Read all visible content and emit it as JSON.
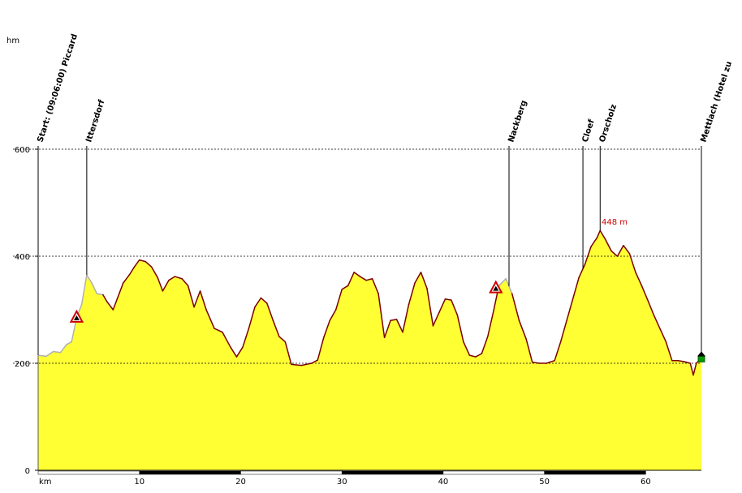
{
  "chart_data": {
    "type": "area",
    "y_unit": "hm",
    "x_unit": "km",
    "xlim": [
      0,
      65.5
    ],
    "ylim": [
      0,
      600
    ],
    "x_ticks": [
      10,
      20,
      30,
      40,
      50,
      60
    ],
    "y_ticks": [
      0,
      200,
      400,
      600
    ],
    "grid": "horizontal dotted at 200, 400, 600",
    "peak_label": "448 m",
    "peak": {
      "x": 55.5,
      "y": 448
    },
    "colors": {
      "fill": "#ffff33",
      "outline": "#7a0000",
      "outline_grey": "#b0b0b0",
      "grid": "#000000",
      "peak_text": "#cc0000",
      "bar_dark": "#000000"
    },
    "waypoints": [
      {
        "label": "Start: (09:06:00) Piccard",
        "x": 0
      },
      {
        "label": "Ittersdorf",
        "x": 4.8
      },
      {
        "label": "Nackberg",
        "x": 46.5
      },
      {
        "label": "Cloef",
        "x": 53.8
      },
      {
        "label": "Orscholz",
        "x": 55.5
      },
      {
        "label": "Mettlach (Hotel zu",
        "x": 65.5
      }
    ],
    "markers": [
      {
        "icon": "warning-triangle-icon",
        "x": 3.8,
        "y": 285
      },
      {
        "icon": "warning-triangle-icon",
        "x": 45.2,
        "y": 340
      },
      {
        "icon": "finish-flag-icon",
        "x": 65.5,
        "y": 210
      }
    ],
    "profile": [
      [
        0,
        215
      ],
      [
        0.8,
        213
      ],
      [
        1.5,
        222
      ],
      [
        2.2,
        220
      ],
      [
        2.8,
        235
      ],
      [
        3.3,
        240
      ],
      [
        3.8,
        285
      ],
      [
        4.3,
        310
      ],
      [
        4.8,
        365
      ],
      [
        5.3,
        350
      ],
      [
        5.8,
        330
      ],
      [
        6.4,
        328
      ],
      [
        6.8,
        315
      ],
      [
        7.4,
        300
      ],
      [
        7.8,
        320
      ],
      [
        8.4,
        350
      ],
      [
        9.0,
        365
      ],
      [
        9.5,
        380
      ],
      [
        10.0,
        393
      ],
      [
        10.6,
        390
      ],
      [
        11.2,
        380
      ],
      [
        11.8,
        360
      ],
      [
        12.3,
        335
      ],
      [
        12.9,
        355
      ],
      [
        13.5,
        362
      ],
      [
        14.2,
        358
      ],
      [
        14.8,
        345
      ],
      [
        15.4,
        305
      ],
      [
        16.0,
        335
      ],
      [
        16.6,
        300
      ],
      [
        17.4,
        265
      ],
      [
        18.2,
        258
      ],
      [
        19.0,
        230
      ],
      [
        19.6,
        212
      ],
      [
        20.2,
        230
      ],
      [
        20.8,
        265
      ],
      [
        21.4,
        305
      ],
      [
        22.0,
        322
      ],
      [
        22.6,
        312
      ],
      [
        23.2,
        280
      ],
      [
        23.8,
        250
      ],
      [
        24.4,
        240
      ],
      [
        25.0,
        198
      ],
      [
        26.0,
        196
      ],
      [
        27.0,
        200
      ],
      [
        27.6,
        206
      ],
      [
        28.2,
        248
      ],
      [
        28.8,
        280
      ],
      [
        29.4,
        300
      ],
      [
        30.0,
        338
      ],
      [
        30.6,
        345
      ],
      [
        31.2,
        370
      ],
      [
        31.8,
        362
      ],
      [
        32.4,
        355
      ],
      [
        33.0,
        358
      ],
      [
        33.6,
        330
      ],
      [
        34.2,
        248
      ],
      [
        34.8,
        280
      ],
      [
        35.4,
        282
      ],
      [
        36.0,
        258
      ],
      [
        36.6,
        310
      ],
      [
        37.2,
        350
      ],
      [
        37.8,
        370
      ],
      [
        38.4,
        340
      ],
      [
        39.0,
        270
      ],
      [
        39.6,
        295
      ],
      [
        40.2,
        320
      ],
      [
        40.8,
        318
      ],
      [
        41.4,
        290
      ],
      [
        42.0,
        240
      ],
      [
        42.6,
        215
      ],
      [
        43.2,
        212
      ],
      [
        43.8,
        218
      ],
      [
        44.4,
        250
      ],
      [
        45.0,
        300
      ],
      [
        45.5,
        345
      ],
      [
        46.2,
        358
      ],
      [
        46.8,
        330
      ],
      [
        47.5,
        280
      ],
      [
        48.2,
        245
      ],
      [
        48.8,
        202
      ],
      [
        49.5,
        200
      ],
      [
        50.2,
        200
      ],
      [
        51.0,
        205
      ],
      [
        51.6,
        240
      ],
      [
        52.2,
        280
      ],
      [
        52.8,
        320
      ],
      [
        53.4,
        360
      ],
      [
        54.0,
        385
      ],
      [
        54.6,
        418
      ],
      [
        55.2,
        435
      ],
      [
        55.5,
        448
      ],
      [
        56.0,
        432
      ],
      [
        56.6,
        410
      ],
      [
        57.2,
        400
      ],
      [
        57.8,
        420
      ],
      [
        58.4,
        405
      ],
      [
        59.0,
        370
      ],
      [
        59.6,
        345
      ],
      [
        60.2,
        318
      ],
      [
        60.8,
        290
      ],
      [
        61.4,
        265
      ],
      [
        62.0,
        240
      ],
      [
        62.6,
        205
      ],
      [
        63.2,
        205
      ],
      [
        63.8,
        203
      ],
      [
        64.4,
        200
      ],
      [
        64.7,
        178
      ],
      [
        65.0,
        200
      ],
      [
        65.5,
        210
      ]
    ],
    "grey_segments": [
      [
        0,
        6.4
      ],
      [
        45.5,
        47.0
      ]
    ]
  }
}
